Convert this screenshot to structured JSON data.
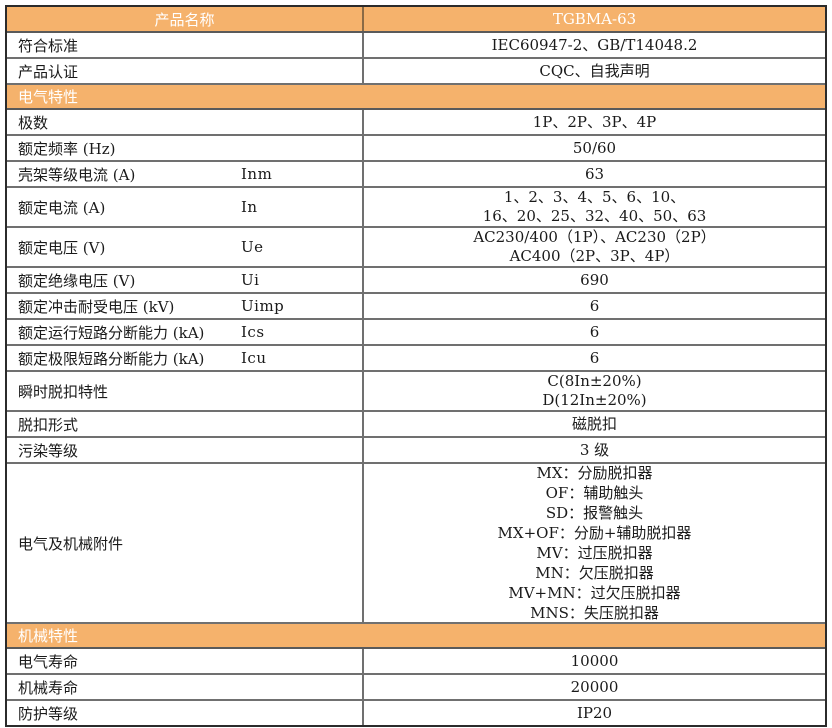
{
  "theme": {
    "section_bg": "#f5b26c",
    "section_text": "#ffffff",
    "grid_color": "#707070",
    "outer_border": "#2b2b2b",
    "body_text": "#1a1a1a"
  },
  "title_row": {
    "label": "产品名称",
    "value": "TGBMA-63"
  },
  "rows": [
    {
      "type": "data",
      "label": "符合标准",
      "symbol": "",
      "value": "IEC60947-2、GB/T14048.2"
    },
    {
      "type": "data",
      "label": "产品认证",
      "symbol": "",
      "value": "CQC、自我声明"
    },
    {
      "type": "section",
      "label": "电气特性"
    },
    {
      "type": "data",
      "label": "极数",
      "symbol": "",
      "value": "1P、2P、3P、4P"
    },
    {
      "type": "data",
      "label": "额定频率 (Hz)",
      "symbol": "",
      "value": "50/60"
    },
    {
      "type": "data",
      "label": "壳架等级电流 (A)",
      "symbol": "Inm",
      "value": "63"
    },
    {
      "type": "data",
      "label": "额定电流 (A)",
      "symbol": "In",
      "value": "1、2、3、4、5、6、10、\n16、20、25、32、40、50、63"
    },
    {
      "type": "data",
      "label": "额定电压 (V)",
      "symbol": "Ue",
      "value": "AC230/400（1P）、AC230（2P）\nAC400（2P、3P、4P）"
    },
    {
      "type": "data",
      "label": "额定绝缘电压 (V)",
      "symbol": "Ui",
      "value": "690"
    },
    {
      "type": "data",
      "label": "额定冲击耐受电压 (kV)",
      "symbol": "Uimp",
      "value": "6"
    },
    {
      "type": "data",
      "label": "额定运行短路分断能力 (kA)",
      "symbol": "Ics",
      "value": "6"
    },
    {
      "type": "data",
      "label": "额定极限短路分断能力 (kA)",
      "symbol": "Icu",
      "value": "6"
    },
    {
      "type": "data",
      "label": "瞬时脱扣特性",
      "symbol": "",
      "value": "C(8In±20%)\nD(12In±20%)"
    },
    {
      "type": "data",
      "label": "脱扣形式",
      "symbol": "",
      "value": "磁脱扣"
    },
    {
      "type": "data",
      "label": "污染等级",
      "symbol": "",
      "value": "3 级"
    },
    {
      "type": "data",
      "label": "电气及机械附件",
      "symbol": "",
      "value": "MX：分励脱扣器\nOF：辅助触头\nSD：报警触头\nMX+OF：分励+辅助脱扣器\nMV：过压脱扣器\nMN：欠压脱扣器\nMV+MN：过欠压脱扣器\nMNS：失压脱扣器"
    },
    {
      "type": "section",
      "label": "机械特性"
    },
    {
      "type": "data",
      "label": "电气寿命",
      "symbol": "",
      "value": "10000"
    },
    {
      "type": "data",
      "label": "机械寿命",
      "symbol": "",
      "value": "20000"
    },
    {
      "type": "data",
      "label": "防护等级",
      "symbol": "",
      "value": "IP20"
    }
  ]
}
